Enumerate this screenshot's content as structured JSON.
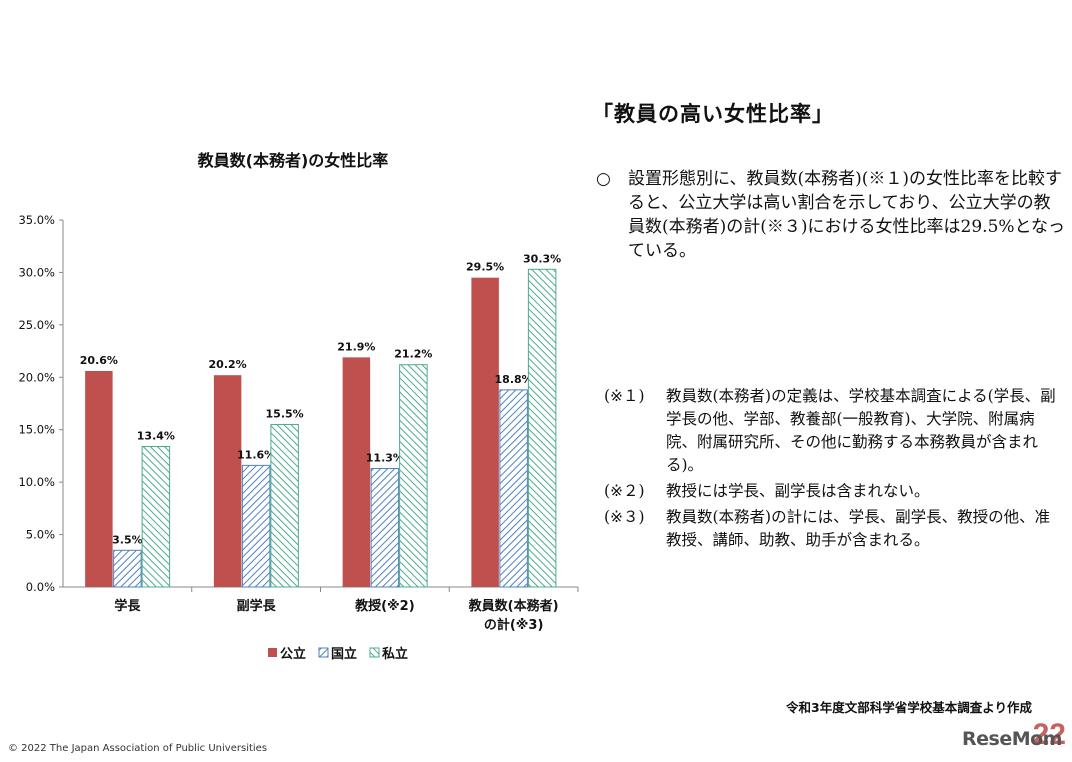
{
  "chart_data": {
    "type": "bar",
    "title": "教員数(本務者)の女性比率",
    "categories": [
      {
        "label_lines": [
          "学長"
        ]
      },
      {
        "label_lines": [
          "副学長"
        ]
      },
      {
        "label_lines": [
          "教授(※2)"
        ]
      },
      {
        "label_lines": [
          "教員数(本務者)",
          "の計(※3)"
        ]
      }
    ],
    "series": [
      {
        "name": "公立",
        "color": "#c0504d",
        "pattern": "solid",
        "values": [
          20.6,
          20.2,
          21.9,
          29.5
        ],
        "labels": [
          "20.6%",
          "20.2%",
          "21.9%",
          "29.5%"
        ]
      },
      {
        "name": "国立",
        "color": "#4f81bd",
        "pattern": "diagonal",
        "values": [
          3.5,
          11.6,
          11.3,
          18.8
        ],
        "labels": [
          "3.5%",
          "11.6%",
          "11.3%",
          "18.8%"
        ]
      },
      {
        "name": "私立",
        "color": "#4bac8c",
        "pattern": "diagonal",
        "values": [
          13.4,
          15.5,
          21.2,
          30.3
        ],
        "labels": [
          "13.4%",
          "15.5%",
          "21.2%",
          "30.3%"
        ]
      }
    ],
    "ylim": [
      0,
      35
    ],
    "yticks": [
      0,
      5,
      10,
      15,
      20,
      25,
      30,
      35
    ],
    "ytick_labels": [
      "0.0%",
      "5.0%",
      "10.0%",
      "15.0%",
      "20.0%",
      "25.0%",
      "30.0%",
      "35.0%"
    ],
    "xlabel": "",
    "ylabel": "",
    "grid": false,
    "legend_position": "bottom"
  },
  "text": {
    "heading": "「教員の高い女性比率」",
    "bullet_mark": "○",
    "bullet_text": "設置形態別に、教員数(本務者)(※１)の女性比率を比較すると、公立大学は高い割合を示しており、公立大学の教員数(本務者)の計(※３)における女性比率は29.5%となっている。",
    "notes": [
      {
        "label": "(※１)",
        "text": "教員数(本務者)の定義は、学校基本調査による(学長、副学長の他、学部、教養部(一般教育)、大学院、附属病院、附属研究所、その他に勤務する本務教員が含まれる)。"
      },
      {
        "label": "(※２)",
        "text": "教授には学長、副学長は含まれない。"
      },
      {
        "label": "(※３)",
        "text": "教員数(本務者)の計には、学長、副学長、教授の他、准教授、講師、助教、助手が含まれる。"
      }
    ],
    "source": "令和3年度文部科学省学校基本調査より作成",
    "copyright": "© 2022 The Japan Association of Public Universities",
    "logo": "ReseMom",
    "page_number": "22"
  }
}
